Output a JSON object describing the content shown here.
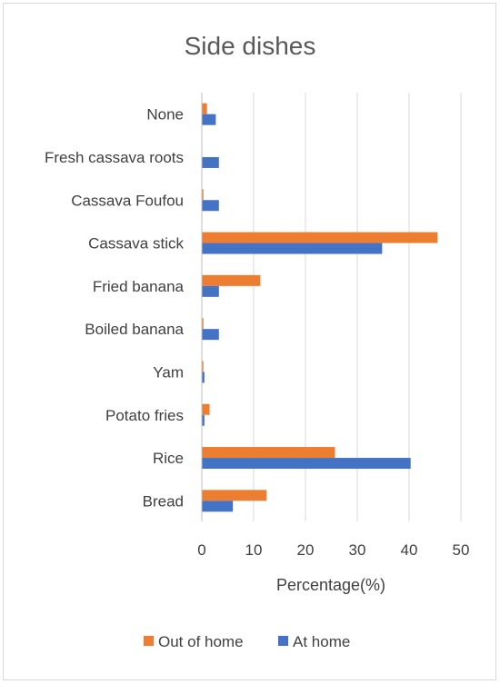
{
  "chart_data": {
    "type": "bar",
    "orientation": "horizontal",
    "title": "Side dishes",
    "xlabel": "Percentage(%)",
    "ylabel": "",
    "xlim": [
      0,
      50
    ],
    "xticks": [
      0,
      10,
      20,
      30,
      40,
      50
    ],
    "categories": [
      "None",
      "Fresh cassava roots",
      "Cassava Foufou",
      "Cassava stick",
      "Fried banana",
      "Boiled banana",
      "Yam",
      "Potato fries",
      "Rice",
      "Bread"
    ],
    "series": [
      {
        "name": "Out of home",
        "color": "#ED7D31",
        "values": [
          1.0,
          0.0,
          0.3,
          45.5,
          11.3,
          0.3,
          0.3,
          1.5,
          25.7,
          12.5
        ]
      },
      {
        "name": "At home",
        "color": "#4472C4",
        "values": [
          2.7,
          3.3,
          3.3,
          34.8,
          3.3,
          3.3,
          0.5,
          0.5,
          40.3,
          6.0
        ]
      }
    ],
    "grid": "vertical",
    "legend": "bottom"
  }
}
